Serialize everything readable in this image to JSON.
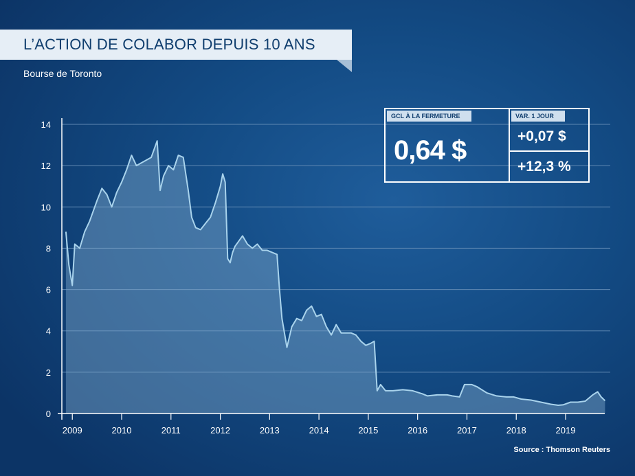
{
  "header": {
    "title": "L’ACTION DE COLABOR DEPUIS 10 ANS",
    "subtitle": "Bourse de Toronto"
  },
  "source": "Source : Thomson Reuters",
  "infobox": {
    "close_label": "GCL À LA FERMETURE",
    "close_value": "0,64 $",
    "var_label": "VAR. 1 JOUR",
    "var_abs": "+0,07 $",
    "var_pct": "+12,3 %"
  },
  "colors": {
    "line": "#a9d3ec",
    "fill": "#7fa9cc",
    "grid": "#5f88b2",
    "axis": "#ffffff"
  },
  "chart_data": {
    "type": "area",
    "title": "L’ACTION DE COLABOR DEPUIS 10 ANS",
    "xlabel": "",
    "ylabel": "",
    "xlim": [
      2008.85,
      2019.85
    ],
    "ylim": [
      0,
      14
    ],
    "yticks": [
      "0",
      "2",
      "4",
      "6",
      "8",
      "10",
      "12",
      "14"
    ],
    "xticks": [
      "2009",
      "2010",
      "2011",
      "2012",
      "2013",
      "2014",
      "2015",
      "2016",
      "2017",
      "2018",
      "2019"
    ],
    "grid": true,
    "series": [
      {
        "x": [
          2008.87,
          2008.93,
          2009.0,
          2009.05,
          2009.15,
          2009.25,
          2009.35,
          2009.5,
          2009.6,
          2009.7,
          2009.8,
          2009.9,
          2010.0,
          2010.1,
          2010.2,
          2010.3,
          2010.45,
          2010.6,
          2010.72,
          2010.78,
          2010.85,
          2010.95,
          2011.05,
          2011.15,
          2011.25,
          2011.35,
          2011.42,
          2011.5,
          2011.6,
          2011.7,
          2011.8,
          2011.9,
          2012.0,
          2012.05,
          2012.1,
          2012.15,
          2012.2,
          2012.25,
          2012.3,
          2012.45,
          2012.55,
          2012.65,
          2012.75,
          2012.85,
          2012.95,
          2013.05,
          2013.15,
          2013.2,
          2013.25,
          2013.35,
          2013.45,
          2013.55,
          2013.65,
          2013.75,
          2013.85,
          2013.95,
          2014.05,
          2014.15,
          2014.25,
          2014.35,
          2014.45,
          2014.55,
          2014.65,
          2014.75,
          2014.85,
          2014.95,
          2015.05,
          2015.12,
          2015.18,
          2015.25,
          2015.35,
          2015.5,
          2015.7,
          2015.9,
          2016.1,
          2016.2,
          2016.4,
          2016.6,
          2016.7,
          2016.85,
          2016.95,
          2017.1,
          2017.2,
          2017.4,
          2017.6,
          2017.8,
          2017.95,
          2018.1,
          2018.3,
          2018.5,
          2018.7,
          2018.85,
          2018.95,
          2019.1,
          2019.25,
          2019.4,
          2019.55,
          2019.65,
          2019.72,
          2019.8
        ],
        "values": [
          8.8,
          7.2,
          6.2,
          8.2,
          8.0,
          8.8,
          9.3,
          10.3,
          10.9,
          10.6,
          10.0,
          10.7,
          11.2,
          11.8,
          12.5,
          12.0,
          12.2,
          12.4,
          13.2,
          10.8,
          11.5,
          12.0,
          11.8,
          12.5,
          12.4,
          10.8,
          9.5,
          9.0,
          8.9,
          9.2,
          9.5,
          10.2,
          11.0,
          11.6,
          11.2,
          7.5,
          7.3,
          7.8,
          8.1,
          8.6,
          8.2,
          8.0,
          8.2,
          7.9,
          7.9,
          7.8,
          7.7,
          6.0,
          4.6,
          3.2,
          4.2,
          4.6,
          4.5,
          5.0,
          5.2,
          4.7,
          4.8,
          4.2,
          3.8,
          4.3,
          3.9,
          3.9,
          3.9,
          3.8,
          3.5,
          3.3,
          3.4,
          3.5,
          1.1,
          1.4,
          1.1,
          1.1,
          1.15,
          1.1,
          0.95,
          0.85,
          0.9,
          0.9,
          0.85,
          0.8,
          1.4,
          1.4,
          1.3,
          1.0,
          0.85,
          0.8,
          0.8,
          0.7,
          0.65,
          0.55,
          0.45,
          0.4,
          0.42,
          0.55,
          0.55,
          0.6,
          0.9,
          1.05,
          0.8,
          0.62
        ]
      }
    ]
  }
}
